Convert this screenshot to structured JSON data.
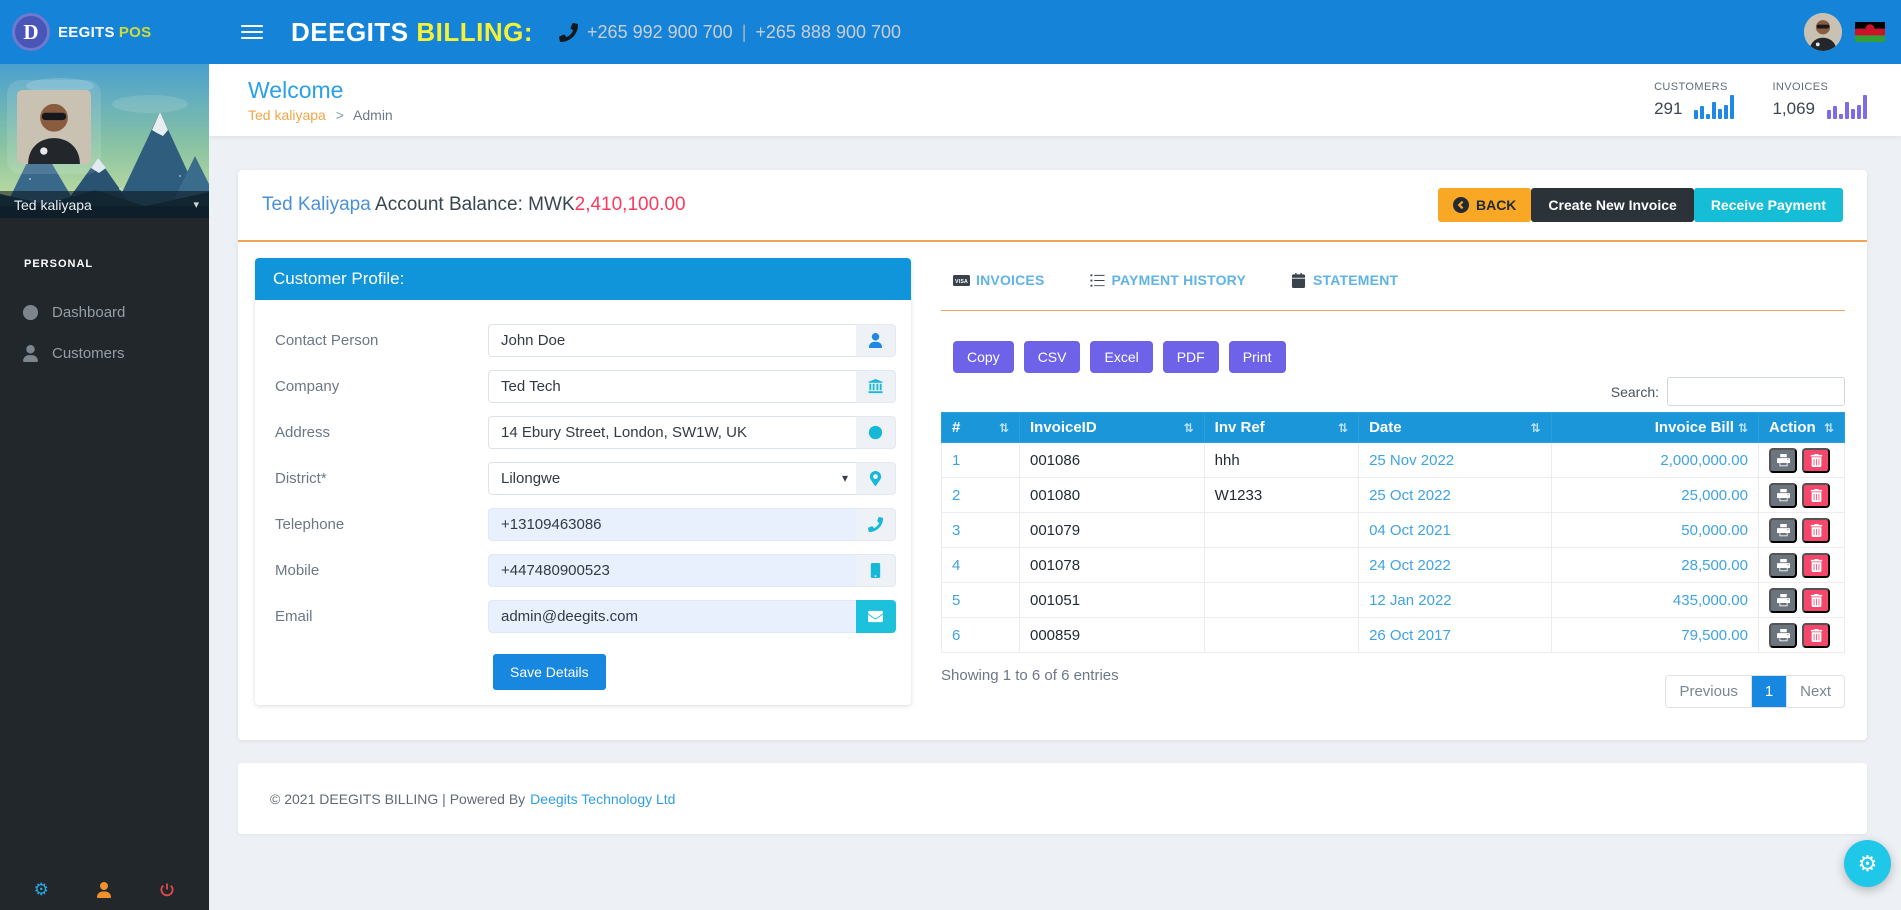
{
  "colors": {
    "navbar_blue": "#1583d8",
    "accent_yellow": "#f5f136",
    "accent_lime": "#cddc39",
    "primary_blue": "#1787e0",
    "cyan": "#16bdd6",
    "orange": "#f9a826",
    "purple": "#6e62e9",
    "danger_pink": "#f4476b",
    "balance_amount_red": "#fb3a5e",
    "table_header_blue": "#1b97d9"
  },
  "navbar": {
    "logo_letter": "D",
    "brand": "EEGITS",
    "brand_accent": "POS",
    "title": "DEEGITS",
    "title_accent": "BILLING:",
    "phone1": "+265 992 900 700",
    "phone_separator": "|",
    "phone2": "+265 888 900 700"
  },
  "sidebar": {
    "user_name": "Ted kaliyapa",
    "section": "PERSONAL",
    "items": [
      {
        "label": "Dashboard",
        "icon": "dashboard-icon"
      },
      {
        "label": "Customers",
        "icon": "customers-icon"
      }
    ]
  },
  "header": {
    "title": "Welcome",
    "breadcrumb_user": "Ted kaliyapa",
    "breadcrumb_sep": ">",
    "breadcrumb_page": "Admin",
    "stats": [
      {
        "label": "CUSTOMERS",
        "value": "291"
      },
      {
        "label": "INVOICES",
        "value": "1,069"
      }
    ]
  },
  "balance": {
    "name": "Ted Kaliyapa",
    "label": "Account Balance: MWK",
    "amount": "2,410,100.00",
    "back": "BACK",
    "create_invoice": "Create New Invoice",
    "receive_payment": "Receive Payment"
  },
  "profile": {
    "title": "Customer Profile:",
    "fields": [
      {
        "label": "Contact Person",
        "value": "John Doe",
        "icon": "user-icon"
      },
      {
        "label": "Company",
        "value": "Ted Tech",
        "icon": "bank-icon"
      },
      {
        "label": "Address",
        "value": "14 Ebury Street, London, SW1W, UK",
        "icon": "globe-icon"
      },
      {
        "label": "District*",
        "value": "Lilongwe",
        "icon": "map-pin-icon"
      },
      {
        "label": "Telephone",
        "value": "+13109463086",
        "icon": "phone-icon"
      },
      {
        "label": "Mobile",
        "value": "+447480900523",
        "icon": "mobile-icon"
      },
      {
        "label": "Email",
        "value": "admin@deegits.com",
        "icon": "envelope-icon"
      }
    ],
    "save": "Save Details"
  },
  "tabs": [
    {
      "label": "INVOICES",
      "icon": "visa-card-icon"
    },
    {
      "label": "PAYMENT HISTORY",
      "icon": "list-icon"
    },
    {
      "label": "STATEMENT",
      "icon": "calendar-icon"
    }
  ],
  "toolbar": {
    "buttons": [
      "Copy",
      "CSV",
      "Excel",
      "PDF",
      "Print"
    ],
    "search_label": "Search:"
  },
  "invoice_table": {
    "columns": [
      "#",
      "InvoiceID",
      "Inv Ref",
      "Date",
      "Invoice Bill",
      "Action"
    ],
    "rows": [
      {
        "num": "1",
        "id": "001086",
        "ref": "hhh",
        "date": "25 Nov 2022",
        "bill": "2,000,000.00"
      },
      {
        "num": "2",
        "id": "001080",
        "ref": "W1233",
        "date": "25 Oct 2022",
        "bill": "25,000.00"
      },
      {
        "num": "3",
        "id": "001079",
        "ref": "",
        "date": "04 Oct 2021",
        "bill": "50,000.00"
      },
      {
        "num": "4",
        "id": "001078",
        "ref": "",
        "date": "24 Oct 2022",
        "bill": "28,500.00"
      },
      {
        "num": "5",
        "id": "001051",
        "ref": "",
        "date": "12 Jan 2022",
        "bill": "435,000.00"
      },
      {
        "num": "6",
        "id": "000859",
        "ref": "",
        "date": "26 Oct 2017",
        "bill": "79,500.00"
      }
    ],
    "showing": "Showing 1 to 6 of 6 entries",
    "previous": "Previous",
    "page": "1",
    "next": "Next"
  },
  "footer": {
    "copyright": "© 2021 DEEGITS BILLING | Powered By",
    "link": "Deegits Technology Ltd"
  }
}
